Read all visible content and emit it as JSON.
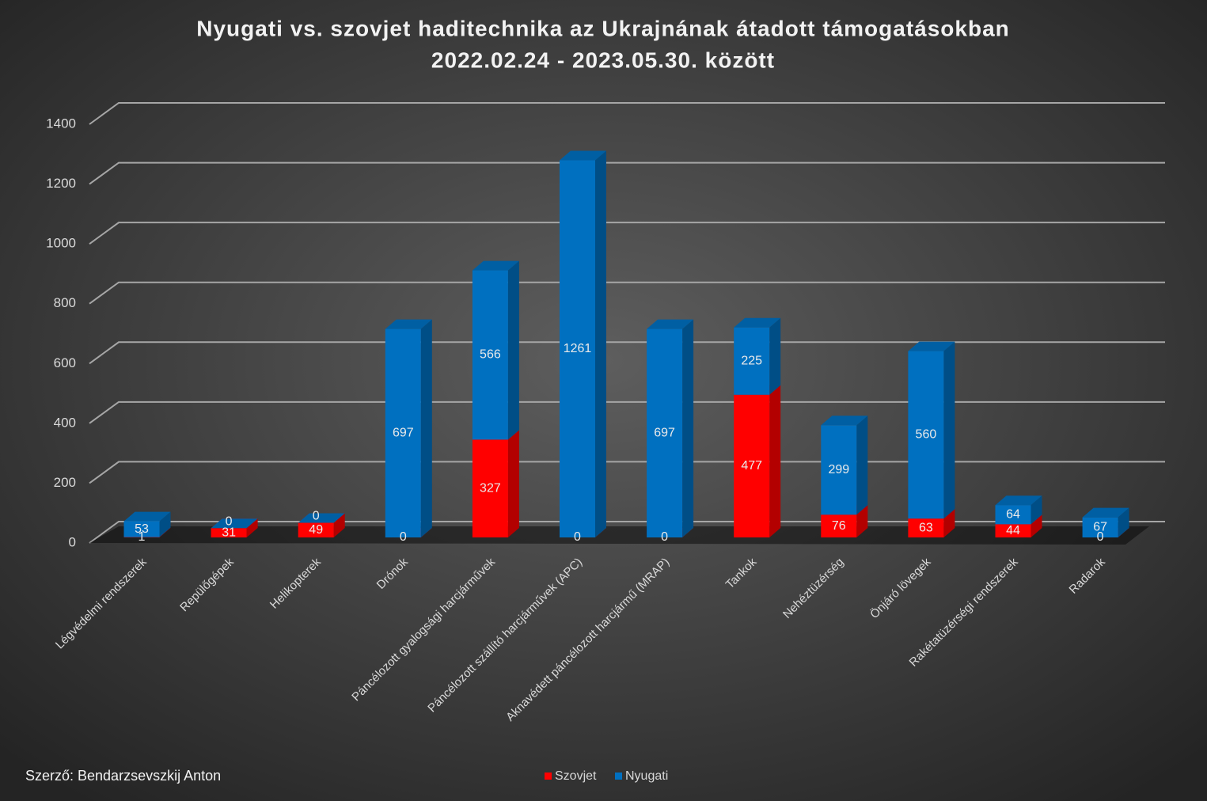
{
  "chart_data": {
    "type": "bar3d_stacked",
    "title": "Nyugati vs. szovjet haditechnika az Ukrajnának átadott támogatásokban",
    "subtitle": "2022.02.24 - 2023.05.30. között",
    "annotation": "Szerző: Bendarzsevszkij Anton",
    "categories": [
      "Légvédelmi rendszerek",
      "Repülőgépek",
      "Helikopterek",
      "Drónok",
      "Páncélozott gyalogsági harcjárművek",
      "Páncélozott szállító harcjárművek (APC)",
      "Aknavédett páncélozott harcjármű (MRAP)",
      "Tankok",
      "Nehéztüzérség",
      "Önjáró lövegek",
      "Rakétatüzérségi rendszerek",
      "Radarok"
    ],
    "series": [
      {
        "name": "Szovjet",
        "color": "#ff0000",
        "values": [
          1,
          31,
          49,
          0,
          327,
          0,
          0,
          477,
          76,
          63,
          44,
          0
        ]
      },
      {
        "name": "Nyugati",
        "color": "#0070c0",
        "values": [
          53,
          0,
          0,
          697,
          566,
          1261,
          697,
          225,
          299,
          560,
          64,
          67
        ]
      }
    ],
    "ylim": [
      0,
      1400
    ],
    "yticks": [
      0,
      200,
      400,
      600,
      800,
      1000,
      1200,
      1400
    ],
    "grid": true
  }
}
